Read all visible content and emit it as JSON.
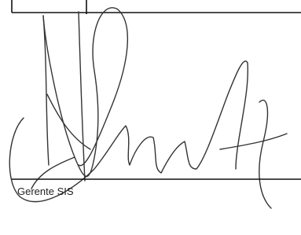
{
  "signature_block": {
    "label": "Gerente SIS"
  }
}
